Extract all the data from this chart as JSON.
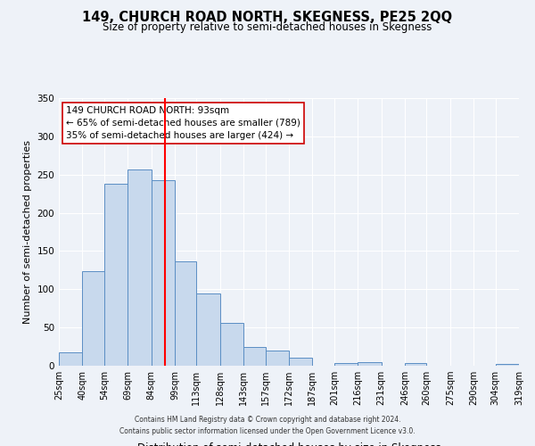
{
  "title": "149, CHURCH ROAD NORTH, SKEGNESS, PE25 2QQ",
  "subtitle": "Size of property relative to semi-detached houses in Skegness",
  "xlabel": "Distribution of semi-detached houses by size in Skegness",
  "ylabel": "Number of semi-detached properties",
  "annotation_line1": "149 CHURCH ROAD NORTH: 93sqm",
  "annotation_line2": "← 65% of semi-detached houses are smaller (789)",
  "annotation_line3": "35% of semi-detached houses are larger (424) →",
  "footer1": "Contains HM Land Registry data © Crown copyright and database right 2024.",
  "footer2": "Contains public sector information licensed under the Open Government Licence v3.0.",
  "bar_edges": [
    25,
    40,
    54,
    69,
    84,
    99,
    113,
    128,
    143,
    157,
    172,
    187,
    201,
    216,
    231,
    246,
    260,
    275,
    290,
    304,
    319
  ],
  "bar_heights": [
    17,
    124,
    238,
    257,
    243,
    136,
    94,
    56,
    25,
    20,
    10,
    0,
    3,
    5,
    0,
    3,
    0,
    0,
    0,
    2
  ],
  "tick_labels": [
    "25sqm",
    "40sqm",
    "54sqm",
    "69sqm",
    "84sqm",
    "99sqm",
    "113sqm",
    "128sqm",
    "143sqm",
    "157sqm",
    "172sqm",
    "187sqm",
    "201sqm",
    "216sqm",
    "231sqm",
    "246sqm",
    "260sqm",
    "275sqm",
    "290sqm",
    "304sqm",
    "319sqm"
  ],
  "bar_color": "#c8d9ed",
  "bar_edge_color": "#5b8ec4",
  "vline_x": 93,
  "vline_color": "red",
  "ylim": [
    0,
    350
  ],
  "yticks": [
    0,
    50,
    100,
    150,
    200,
    250,
    300,
    350
  ],
  "bg_color": "#eef2f8",
  "grid_color": "#ffffff",
  "annotation_box_color": "#ffffff",
  "annotation_box_edge": "#cc0000",
  "title_fontsize": 10.5,
  "subtitle_fontsize": 8.5,
  "ylabel_fontsize": 8,
  "xlabel_fontsize": 8.5,
  "tick_fontsize": 7,
  "annotation_fontsize": 7.5,
  "footer_fontsize": 5.5
}
